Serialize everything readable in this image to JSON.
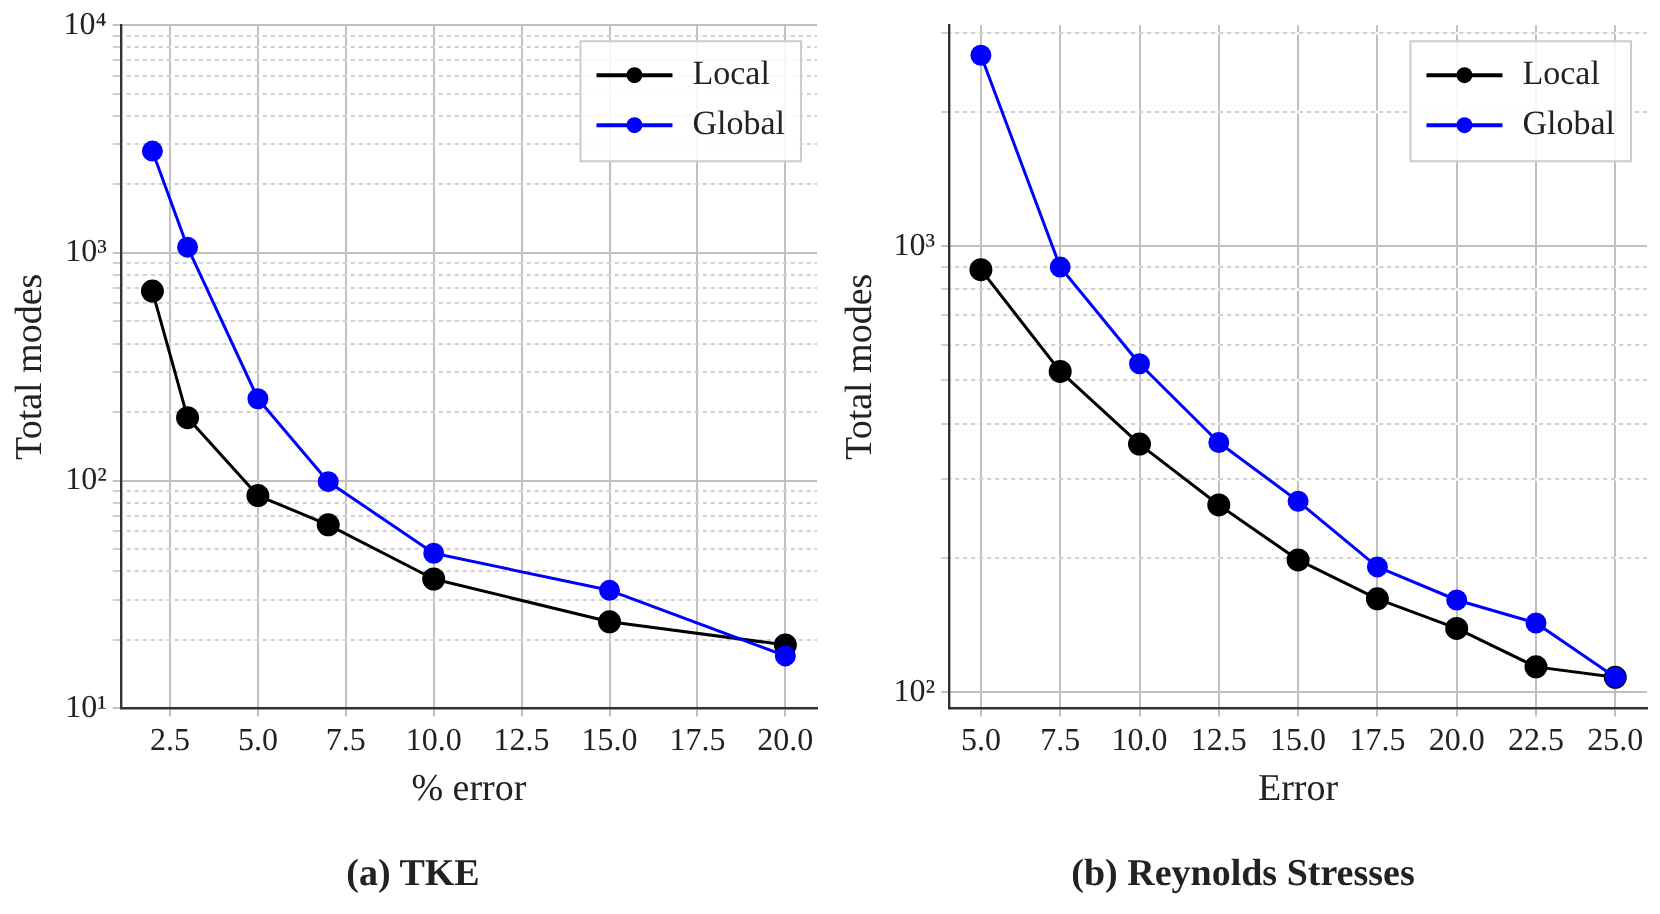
{
  "chart_data": [
    {
      "type": "line",
      "title": "(a) TKE",
      "xlabel": "% error",
      "ylabel": "Total modes",
      "log": "y",
      "grid": true,
      "legend": "top right",
      "marker": "circle",
      "line_style": "solid",
      "xlim": [
        1.1,
        20.9
      ],
      "xticks": [
        2.5,
        {
          "value": 5,
          "label": "5.0"
        },
        7.5,
        {
          "value": 10,
          "label": "10.0"
        },
        12.5,
        {
          "value": 15,
          "label": "15.0"
        },
        17.5,
        {
          "value": 20,
          "label": "20.0"
        }
      ],
      "ylim": [
        10,
        10000
      ],
      "yticks": [
        {
          "value": 10,
          "label": "10¹"
        },
        {
          "value": 20,
          "label": null
        },
        {
          "value": 30,
          "label": null
        },
        {
          "value": 40,
          "label": null
        },
        {
          "value": 50,
          "label": null
        },
        {
          "value": 60,
          "label": null
        },
        {
          "value": 70,
          "label": null
        },
        {
          "value": 80,
          "label": null
        },
        {
          "value": 90,
          "label": null
        },
        {
          "value": 100,
          "label": "10²"
        },
        {
          "value": 200,
          "label": null
        },
        {
          "value": 300,
          "label": null
        },
        {
          "value": 400,
          "label": null
        },
        {
          "value": 500,
          "label": null
        },
        {
          "value": 600,
          "label": null
        },
        {
          "value": 700,
          "label": null
        },
        {
          "value": 800,
          "label": null
        },
        {
          "value": 900,
          "label": null
        },
        {
          "value": 1000,
          "label": "10³"
        },
        {
          "value": 2000,
          "label": null
        },
        {
          "value": 3000,
          "label": null
        },
        {
          "value": 4000,
          "label": null
        },
        {
          "value": 5000,
          "label": null
        },
        {
          "value": 6000,
          "label": null
        },
        {
          "value": 7000,
          "label": null
        },
        {
          "value": 8000,
          "label": null
        },
        {
          "value": 9000,
          "label": null
        },
        {
          "value": 10000,
          "label": "10⁴"
        }
      ],
      "x": [
        2,
        3,
        5,
        7,
        10,
        15,
        20
      ],
      "series": [
        {
          "name": "Local",
          "color": "#000000",
          "values": [
            680,
            189,
            86,
            64,
            37,
            24,
            19
          ]
        },
        {
          "name": "Global",
          "color": "#0000ff",
          "values": [
            2800,
            1060,
            229,
            99,
            48,
            33,
            17
          ]
        }
      ]
    },
    {
      "type": "line",
      "title": "(b) Reynolds Stresses",
      "xlabel": "Error",
      "ylabel": "Total modes",
      "log": "y",
      "grid": true,
      "legend": "top right",
      "marker": "circle",
      "line_style": "solid",
      "xlim": [
        4,
        26
      ],
      "xticks": [
        {
          "value": 5,
          "label": "5.0"
        },
        7.5,
        {
          "value": 10,
          "label": "10.0"
        },
        12.5,
        {
          "value": 15,
          "label": "15.0"
        },
        17.5,
        {
          "value": 20,
          "label": "20.0"
        },
        22.5,
        {
          "value": 25,
          "label": "25.0"
        }
      ],
      "ylim": [
        92,
        3130
      ],
      "yticks": [
        {
          "value": 100,
          "label": "10²"
        },
        {
          "value": 200,
          "label": null
        },
        {
          "value": 300,
          "label": null
        },
        {
          "value": 400,
          "label": null
        },
        {
          "value": 500,
          "label": null
        },
        {
          "value": 600,
          "label": null
        },
        {
          "value": 700,
          "label": null
        },
        {
          "value": 800,
          "label": null
        },
        {
          "value": 900,
          "label": null
        },
        {
          "value": 1000,
          "label": "10³"
        },
        {
          "value": 2000,
          "label": null
        },
        {
          "value": 3000,
          "label": null
        }
      ],
      "x": [
        5,
        7.5,
        10,
        12.5,
        15,
        17.5,
        20,
        22.5,
        25
      ],
      "series": [
        {
          "name": "Local",
          "color": "#000000",
          "values": [
            886,
            524,
            360,
            263,
            198,
            162,
            139,
            114,
            108
          ]
        },
        {
          "name": "Global",
          "color": "#0000ff",
          "values": [
            2680,
            898,
            545,
            363,
            268,
            191,
            161,
            143,
            108
          ]
        }
      ]
    }
  ]
}
